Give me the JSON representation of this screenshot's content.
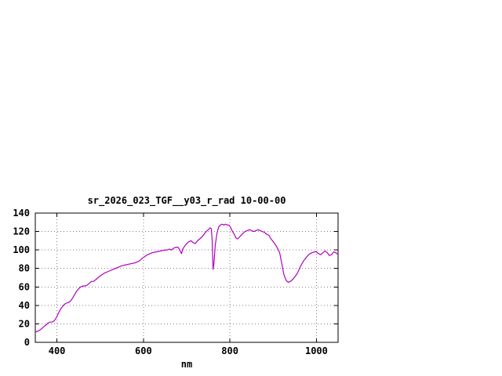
{
  "chart_data": {
    "type": "line",
    "title": "sr_2026_023_TGF__y03_r_rad 10-00-00",
    "xlabel": "nm",
    "ylabel": "",
    "xlim": [
      350,
      1050
    ],
    "ylim": [
      0,
      140
    ],
    "xticks": [
      400,
      600,
      800,
      1000
    ],
    "yticks": [
      0,
      20,
      40,
      60,
      80,
      100,
      120,
      140
    ],
    "grid": true,
    "legend": "none",
    "line_color": "#b000c0",
    "grid_color": "#808080",
    "border_color": "#000000",
    "series": [
      {
        "name": "sr_2026_023_TGF__y03_r_rad",
        "x": [
          350,
          355,
          360,
          365,
          370,
          375,
          380,
          385,
          390,
          395,
          400,
          405,
          410,
          415,
          420,
          425,
          430,
          435,
          440,
          445,
          450,
          455,
          460,
          465,
          470,
          475,
          480,
          485,
          490,
          495,
          500,
          510,
          520,
          530,
          540,
          550,
          560,
          570,
          580,
          590,
          600,
          610,
          620,
          630,
          640,
          650,
          655,
          660,
          665,
          670,
          675,
          680,
          685,
          688,
          691,
          695,
          700,
          705,
          710,
          715,
          720,
          725,
          730,
          735,
          740,
          745,
          750,
          754,
          757,
          759,
          761,
          763,
          766,
          770,
          774,
          778,
          782,
          786,
          790,
          794,
          798,
          802,
          806,
          810,
          814,
          818,
          822,
          826,
          830,
          835,
          840,
          845,
          850,
          855,
          860,
          865,
          870,
          875,
          880,
          885,
          890,
          895,
          900,
          905,
          910,
          915,
          920,
          925,
          930,
          935,
          940,
          945,
          950,
          955,
          960,
          965,
          970,
          975,
          980,
          985,
          990,
          995,
          1000,
          1005,
          1010,
          1015,
          1020,
          1025,
          1030,
          1035,
          1040,
          1045,
          1050
        ],
        "y": [
          11,
          12,
          13,
          15,
          17,
          19,
          21,
          22,
          22,
          24,
          28,
          33,
          37,
          40,
          42,
          43,
          44,
          47,
          51,
          55,
          58,
          60,
          61,
          61,
          62,
          64,
          66,
          66,
          68,
          70,
          72,
          75,
          77,
          79,
          81,
          83,
          84,
          85,
          86,
          88,
          92,
          95,
          97,
          98,
          99,
          100,
          100,
          101,
          100,
          102,
          103,
          103,
          99,
          96,
          101,
          104,
          107,
          109,
          110,
          108,
          107,
          110,
          112,
          114,
          117,
          120,
          122,
          124,
          123,
          110,
          79,
          85,
          105,
          118,
          125,
          127,
          128,
          127,
          128,
          127,
          127,
          124,
          120,
          117,
          113,
          112,
          114,
          116,
          118,
          120,
          121,
          122,
          121,
          120,
          121,
          122,
          121,
          120,
          119,
          117,
          116,
          112,
          109,
          106,
          102,
          97,
          85,
          73,
          67,
          65,
          66,
          68,
          71,
          74,
          79,
          84,
          88,
          91,
          94,
          96,
          97,
          98,
          98,
          96,
          95,
          97,
          99,
          97,
          94,
          95,
          98,
          97,
          95
        ]
      }
    ]
  }
}
